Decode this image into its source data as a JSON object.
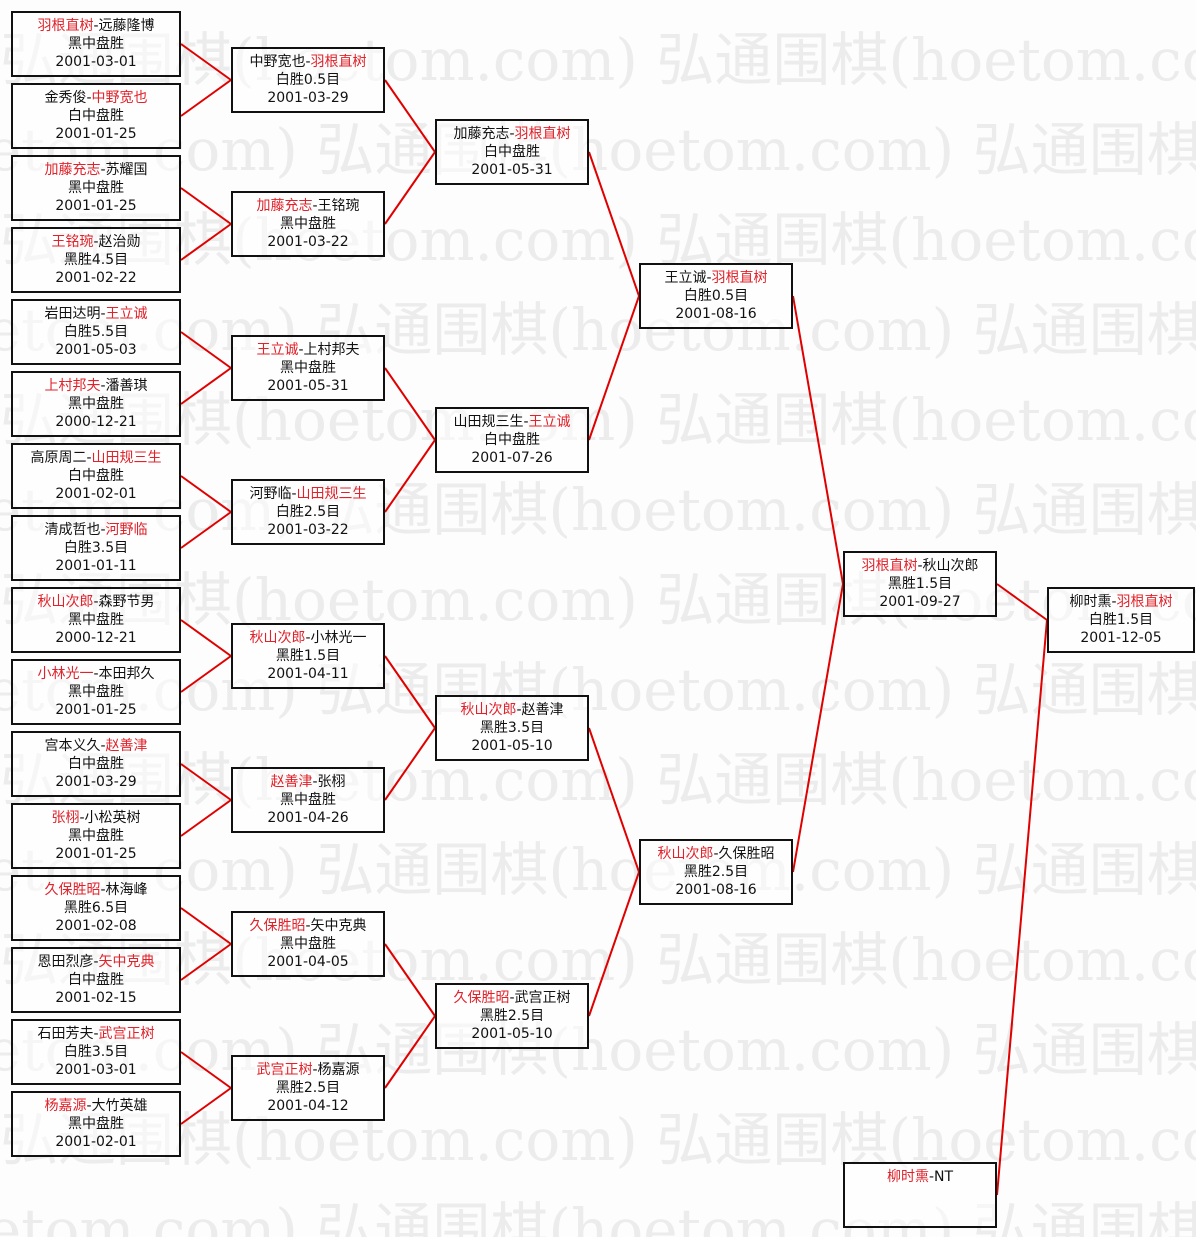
{
  "watermark": "弘通围棋(hoetom.com)",
  "colors": {
    "winner": "#e0222a",
    "line": "#e00000",
    "border": "#111111"
  },
  "separator": "-",
  "rounds": [
    [
      {
        "p1": "羽根直树",
        "p2": "远藤隆博",
        "winner": 1,
        "result": "黑中盘胜",
        "date": "2001-03-01"
      },
      {
        "p1": "金秀俊",
        "p2": "中野宽也",
        "winner": 2,
        "result": "白中盘胜",
        "date": "2001-01-25"
      },
      {
        "p1": "加藤充志",
        "p2": "苏耀国",
        "winner": 1,
        "result": "黑中盘胜",
        "date": "2001-01-25"
      },
      {
        "p1": "王铭琬",
        "p2": "赵治勋",
        "winner": 1,
        "result": "黑胜4.5目",
        "date": "2001-02-22"
      },
      {
        "p1": "岩田达明",
        "p2": "王立诚",
        "winner": 2,
        "result": "白胜5.5目",
        "date": "2001-05-03"
      },
      {
        "p1": "上村邦夫",
        "p2": "潘善琪",
        "winner": 1,
        "result": "黑中盘胜",
        "date": "2000-12-21"
      },
      {
        "p1": "高原周二",
        "p2": "山田规三生",
        "winner": 2,
        "result": "白中盘胜",
        "date": "2001-02-01"
      },
      {
        "p1": "清成哲也",
        "p2": "河野临",
        "winner": 2,
        "result": "白胜3.5目",
        "date": "2001-01-11"
      },
      {
        "p1": "秋山次郎",
        "p2": "森野节男",
        "winner": 1,
        "result": "黑中盘胜",
        "date": "2000-12-21"
      },
      {
        "p1": "小林光一",
        "p2": "本田邦久",
        "winner": 1,
        "result": "黑中盘胜",
        "date": "2001-01-25"
      },
      {
        "p1": "宫本义久",
        "p2": "赵善津",
        "winner": 2,
        "result": "白中盘胜",
        "date": "2001-03-29"
      },
      {
        "p1": "张栩",
        "p2": "小松英树",
        "winner": 1,
        "result": "黑中盘胜",
        "date": "2001-01-25"
      },
      {
        "p1": "久保胜昭",
        "p2": "林海峰",
        "winner": 1,
        "result": "黑胜6.5目",
        "date": "2001-02-08"
      },
      {
        "p1": "恩田烈彦",
        "p2": "矢中克典",
        "winner": 2,
        "result": "白中盘胜",
        "date": "2001-02-15"
      },
      {
        "p1": "石田芳夫",
        "p2": "武宫正树",
        "winner": 2,
        "result": "白胜3.5目",
        "date": "2001-03-01"
      },
      {
        "p1": "杨嘉源",
        "p2": "大竹英雄",
        "winner": 1,
        "result": "黑中盘胜",
        "date": "2001-02-01"
      }
    ],
    [
      {
        "p1": "中野宽也",
        "p2": "羽根直树",
        "winner": 2,
        "result": "白胜0.5目",
        "date": "2001-03-29"
      },
      {
        "p1": "加藤充志",
        "p2": "王铭琬",
        "winner": 1,
        "result": "黑中盘胜",
        "date": "2001-03-22"
      },
      {
        "p1": "王立诚",
        "p2": "上村邦夫",
        "winner": 1,
        "result": "黑中盘胜",
        "date": "2001-05-31"
      },
      {
        "p1": "河野临",
        "p2": "山田规三生",
        "winner": 2,
        "result": "白胜2.5目",
        "date": "2001-03-22"
      },
      {
        "p1": "秋山次郎",
        "p2": "小林光一",
        "winner": 1,
        "result": "黑胜1.5目",
        "date": "2001-04-11"
      },
      {
        "p1": "赵善津",
        "p2": "张栩",
        "winner": 1,
        "result": "黑中盘胜",
        "date": "2001-04-26"
      },
      {
        "p1": "久保胜昭",
        "p2": "矢中克典",
        "winner": 1,
        "result": "黑中盘胜",
        "date": "2001-04-05"
      },
      {
        "p1": "武宫正树",
        "p2": "杨嘉源",
        "winner": 1,
        "result": "黑胜2.5目",
        "date": "2001-04-12"
      }
    ],
    [
      {
        "p1": "加藤充志",
        "p2": "羽根直树",
        "winner": 2,
        "result": "白中盘胜",
        "date": "2001-05-31"
      },
      {
        "p1": "山田规三生",
        "p2": "王立诚",
        "winner": 2,
        "result": "白中盘胜",
        "date": "2001-07-26"
      },
      {
        "p1": "秋山次郎",
        "p2": "赵善津",
        "winner": 1,
        "result": "黑胜3.5目",
        "date": "2001-05-10"
      },
      {
        "p1": "久保胜昭",
        "p2": "武宫正树",
        "winner": 1,
        "result": "黑胜2.5目",
        "date": "2001-05-10"
      }
    ],
    [
      {
        "p1": "王立诚",
        "p2": "羽根直树",
        "winner": 2,
        "result": "白胜0.5目",
        "date": "2001-08-16"
      },
      {
        "p1": "秋山次郎",
        "p2": "久保胜昭",
        "winner": 1,
        "result": "黑胜2.5目",
        "date": "2001-08-16"
      }
    ],
    [
      {
        "p1": "羽根直树",
        "p2": "秋山次郎",
        "winner": 1,
        "result": "黑胜1.5目",
        "date": "2001-09-27"
      }
    ]
  ],
  "final": {
    "p1": "柳时熏",
    "p2": "羽根直树",
    "winner": 2,
    "result": "白胜1.5目",
    "date": "2001-12-05"
  },
  "seed": {
    "p1": "柳时熏",
    "p2": "NT",
    "winner": 1,
    "result": "",
    "date": ""
  }
}
